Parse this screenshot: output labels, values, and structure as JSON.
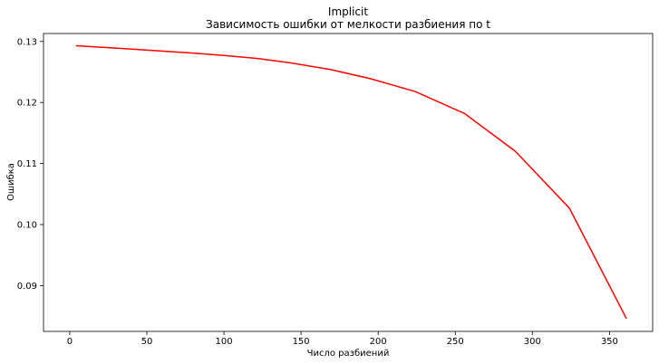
{
  "chart_data": {
    "type": "line",
    "title": "Implicit",
    "subtitle": "Зависимость ошибки от мелкости разбиения по t",
    "xlabel": "Число разбиений",
    "ylabel": "Ошибка",
    "xlim": [
      -17,
      378
    ],
    "ylim": [
      0.0825,
      0.1313
    ],
    "xticks": [
      0,
      50,
      100,
      150,
      200,
      250,
      300,
      350
    ],
    "yticks": [
      0.09,
      0.1,
      0.11,
      0.12,
      0.13
    ],
    "xtick_labels": [
      "0",
      "50",
      "100",
      "150",
      "200",
      "250",
      "300",
      "350"
    ],
    "ytick_labels": [
      "0.09",
      "0.10",
      "0.11",
      "0.12",
      "0.13"
    ],
    "grid": false,
    "series": [
      {
        "color": "#ff0000",
        "x": [
          4,
          30,
          55,
          80,
          100,
          122,
          143,
          169,
          195,
          224,
          256,
          289,
          324,
          361
        ],
        "y": [
          0.1293,
          0.1289,
          0.1285,
          0.1281,
          0.1277,
          0.1272,
          0.1265,
          0.1254,
          0.1239,
          0.1218,
          0.1182,
          0.112,
          0.1027,
          0.0846
        ]
      }
    ]
  }
}
